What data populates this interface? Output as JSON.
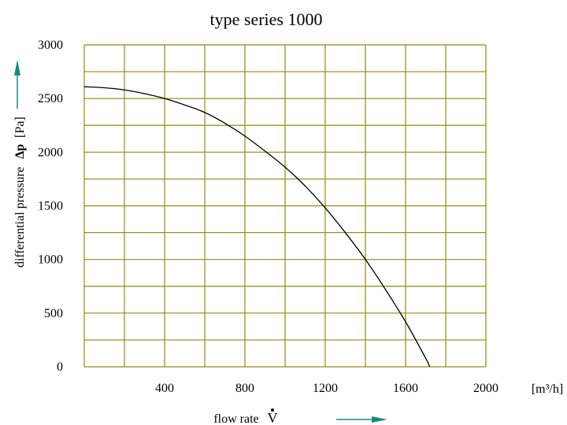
{
  "chart_data": {
    "type": "line",
    "title": "type series 1000",
    "xlabel": "flow rate",
    "xlabel_symbol": "V",
    "x_unit": "[m³/h]",
    "ylabel": "differential pressure",
    "ylabel_symbol": "Δp",
    "y_unit": "[Pa]",
    "xlim": [
      0,
      2000
    ],
    "ylim": [
      0,
      3000
    ],
    "x_ticks": [
      400,
      800,
      1200,
      1600,
      2000
    ],
    "y_ticks": [
      0,
      500,
      1000,
      1500,
      2000,
      2500,
      3000
    ],
    "x_tick_labels": [
      "400",
      "800",
      "1200",
      "1600",
      "2000"
    ],
    "y_tick_labels": [
      "0",
      "500",
      "1000",
      "1500",
      "2000",
      "2500",
      "3000"
    ],
    "grid": true,
    "grid_x_step": 200,
    "grid_y_step": 250,
    "series": [
      {
        "x": [
          0,
          100,
          200,
          300,
          400,
          500,
          600,
          700,
          800,
          900,
          1000,
          1100,
          1200,
          1300,
          1400,
          1500,
          1600,
          1700,
          1720
        ],
        "y": [
          2610,
          2600,
          2580,
          2545,
          2500,
          2440,
          2370,
          2270,
          2150,
          2010,
          1860,
          1685,
          1480,
          1250,
          1000,
          720,
          420,
          80,
          0
        ]
      }
    ]
  },
  "colors": {
    "grid": "#8c8c14",
    "curve": "#000000",
    "arrow": "#1a8a7a",
    "text": "#000000"
  }
}
